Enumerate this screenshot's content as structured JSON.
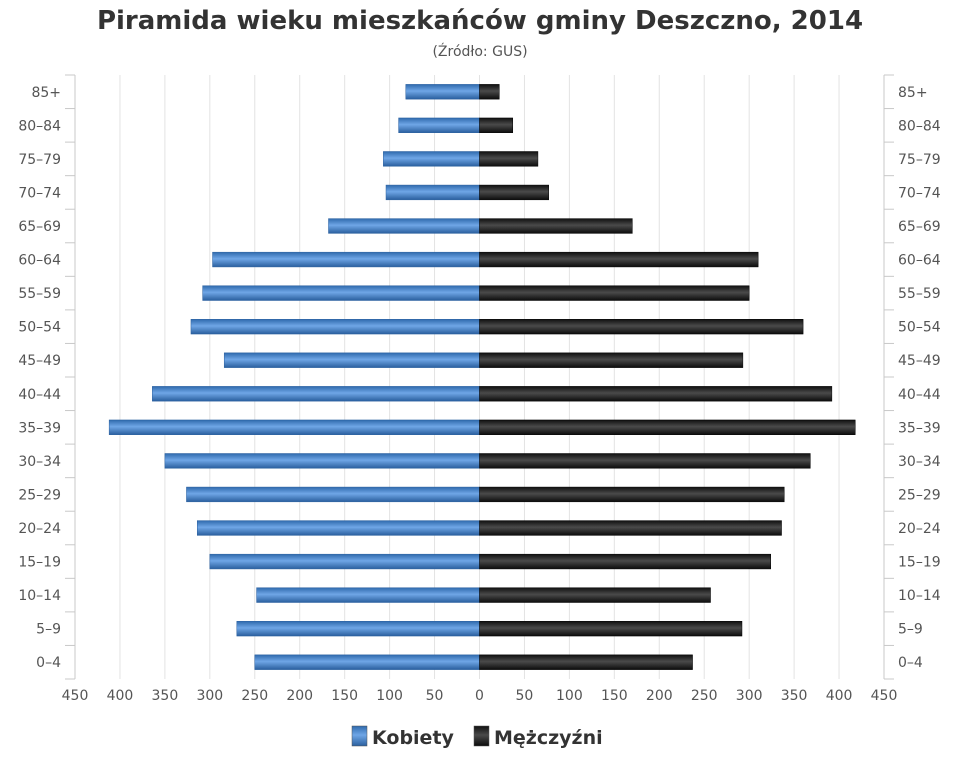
{
  "chart_data": {
    "type": "bar",
    "orientation": "horizontal",
    "title": "Piramida wieku mieszkańców gminy Deszczno, 2014",
    "subtitle": "(Źródło: GUS)",
    "categories": [
      "0–4",
      "5–9",
      "10–14",
      "15–19",
      "20–24",
      "25–29",
      "30–34",
      "35–39",
      "40–44",
      "45–49",
      "50–54",
      "55–59",
      "60–64",
      "65–69",
      "70–74",
      "75–79",
      "80–84",
      "85+"
    ],
    "series": [
      {
        "name": "Kobiety",
        "side": "left",
        "color": "#3d7ec4",
        "values": [
          250,
          270,
          248,
          300,
          314,
          326,
          350,
          412,
          364,
          284,
          321,
          308,
          297,
          168,
          104,
          107,
          90,
          82
        ]
      },
      {
        "name": "Mężczyźni",
        "side": "right",
        "color": "#1a1a1a",
        "values": [
          237,
          292,
          257,
          324,
          336,
          339,
          368,
          418,
          392,
          293,
          360,
          300,
          310,
          170,
          77,
          65,
          37,
          22
        ]
      }
    ],
    "xlim": [
      -450,
      450
    ],
    "x_ticks": [
      -450,
      -400,
      -350,
      -300,
      -250,
      -200,
      -150,
      -100,
      -50,
      0,
      50,
      100,
      150,
      200,
      250,
      300,
      350,
      400,
      450
    ],
    "x_tick_labels": [
      "450",
      "400",
      "350",
      "300",
      "250",
      "200",
      "150",
      "100",
      "50",
      "0",
      "50",
      "100",
      "150",
      "200",
      "250",
      "300",
      "350",
      "400",
      "450"
    ],
    "grid": true,
    "legend_position": "bottom-center",
    "category_axis_labels": "both-sides"
  }
}
